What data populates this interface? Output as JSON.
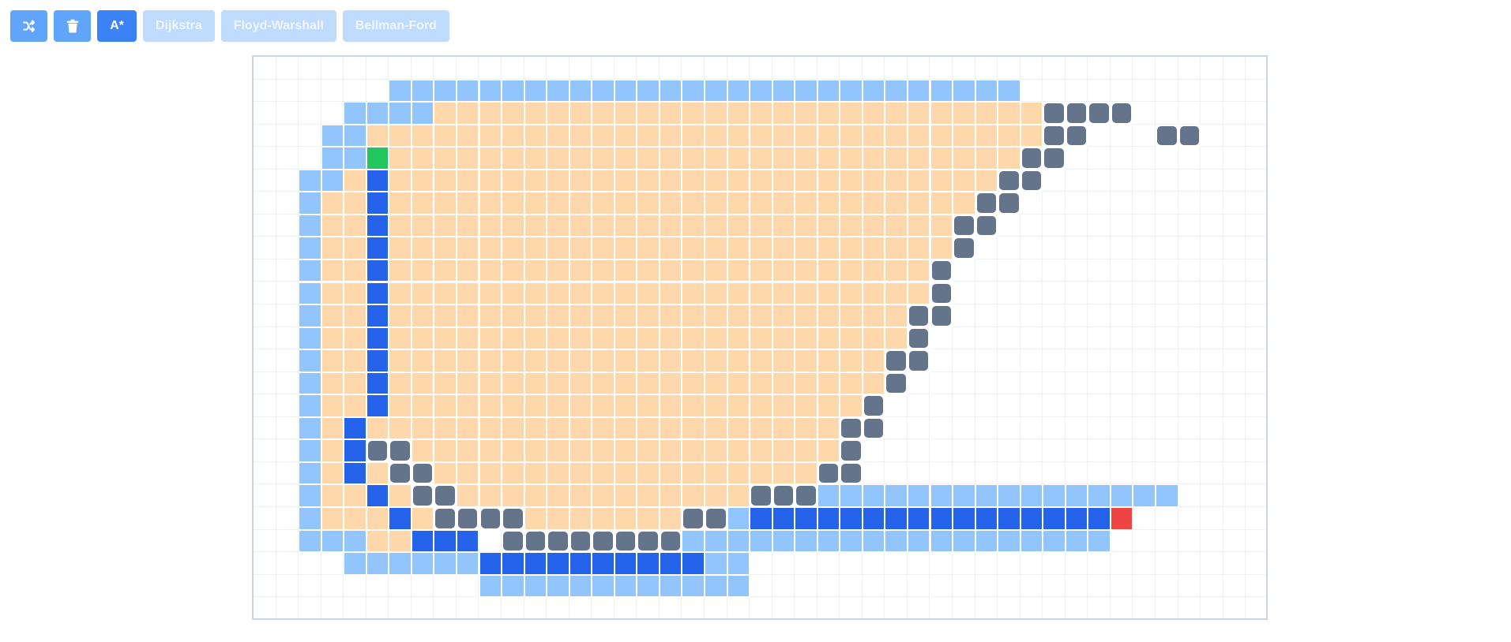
{
  "toolbar": {
    "shuffle_icon": "shuffle-icon",
    "trash_icon": "trash-icon",
    "astar_label": "A*",
    "dijkstra_label": "Dijkstra",
    "floyd_label": "Floyd-Warshall",
    "bellman_label": "Bellman-Ford"
  },
  "colors": {
    "empty": "#ffffff",
    "frontier": "#93c5fd",
    "visited": "#fed7aa",
    "path": "#2563eb",
    "wall": "#64748b",
    "start": "#22c55e",
    "end": "#ef4444",
    "active_button": "#3b82f6",
    "icon_button": "#60a5fa",
    "disabled_button": "#bfdbfe"
  },
  "grid": {
    "cols": 45,
    "rows": 25,
    "legend": {
      ".": "empty",
      "f": "frontier",
      "v": "visited",
      "p": "path",
      "#": "wall",
      "S": "start",
      "E": "end"
    },
    "cells": [
      ".............................................",
      "......ffffffffffffffffffffffffffff...........",
      "....ffffvvvvvvvvvvvvvvvvvvvvvvvvvvv####......",
      "...ffvvvvvvvvvvvvvvvvvvvvvvvvvvvvvv##...##...",
      "...ffSvvvvvvvvvvvvvvvvvvvvvvvvvvvv##.........",
      "..ffvpvvvvvvvvvvvvvvvvvvvvvvvvvvv##..........",
      "..fvvpvvvvvvvvvvvvvvvvvvvvvvvvvv##...........",
      "..fvvpvvvvvvvvvvvvvvvvvvvvvvvvv##............",
      "..fvvpvvvvvvvvvvvvvvvvvvvvvvvvv#.............",
      "..fvvpvvvvvvvvvvvvvvvvvvvvvvvv#..............",
      "..fvvpvvvvvvvvvvvvvvvvvvvvvvvv#..............",
      "..fvvpvvvvvvvvvvvvvvvvvvvvvvv##..............",
      "..fvvpvvvvvvvvvvvvvvvvvvvvvvv#...............",
      "..fvvpvvvvvvvvvvvvvvvvvvvvvv##...............",
      "..fvvpvvvvvvvvvvvvvvvvvvvvvv#................",
      "..fvvpvvvvvvvvvvvvvvvvvvvvv#.................",
      "..fvpvvvvvvvvvvvvvvvvvvvvv##.................",
      "..fvp##vvvvvvvvvvvvvvvvvvv#..................",
      "..fvpv##vvvvvvvvvvvvvvvvv##..................",
      "..fvvpv##vvvvvvvvvvvvv###ffffffffffffffff....",
      "..fvvvpv####vvvvvvv##fppppppppppppppppE......",
      "..fffvvppp.########fffffffffffffffffff.......",
      "....ffffffppppppppppff.......................",
      "..........ffffffffffff.......................",
      "............................................."
    ]
  }
}
